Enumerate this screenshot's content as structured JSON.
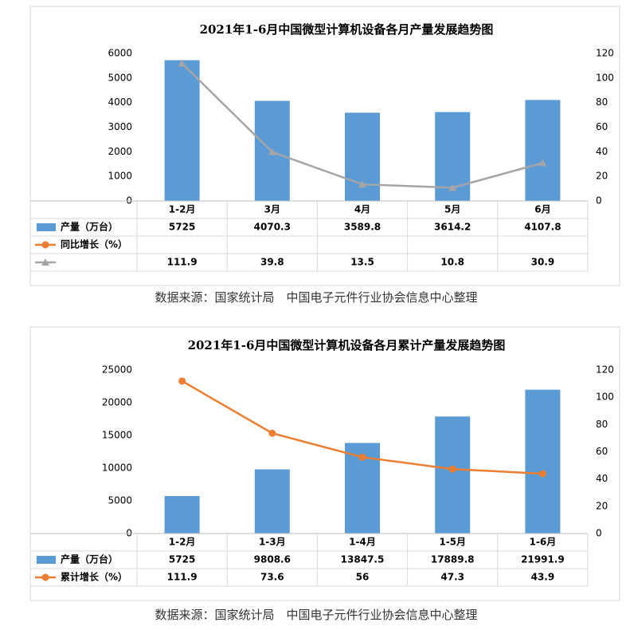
{
  "chart_data": [
    {
      "type": "bar",
      "title": "2021年1-6月中国微型计算机设备各月产量发展趋势图",
      "categories": [
        "1-2月",
        "3月",
        "4月",
        "5月",
        "6月"
      ],
      "series": [
        {
          "name": "产量（万台）",
          "color": "#5b9bd5",
          "values": [
            5725,
            4070.3,
            3589.8,
            3614.2,
            4107.8
          ]
        },
        {
          "name": "同比增长（%）",
          "color": "#ed7d31",
          "axis": "y2",
          "marker": "circle",
          "values": [
            null,
            null,
            null,
            null,
            null
          ]
        },
        {
          "name": null,
          "color": "#a5a5a5",
          "axis": "y2",
          "marker": "triangle",
          "values": [
            111.9,
            39.8,
            13.5,
            10.8,
            30.9
          ]
        }
      ],
      "ylim": [
        0,
        6000
      ],
      "yticks": [
        0,
        1000,
        2000,
        3000,
        4000,
        5000,
        6000
      ],
      "y2lim": [
        0,
        120
      ],
      "y2ticks": [
        0,
        20,
        40,
        60,
        80,
        100,
        120
      ],
      "source": "数据来源：国家统计局　中国电子元件行业协会信息中心整理"
    },
    {
      "type": "bar",
      "title": "2021年1-6月中国微型计算机设备各月累计产量发展趋势图",
      "categories": [
        "1-2月",
        "1-3月",
        "1-4月",
        "1-5月",
        "1-6月"
      ],
      "series": [
        {
          "name": "产量（万台）",
          "color": "#5b9bd5",
          "values": [
            5725,
            9808.6,
            13847.5,
            17889.8,
            21991.9
          ]
        },
        {
          "name": "累计增长（%）",
          "color": "#ed7d31",
          "axis": "y2",
          "marker": "circle",
          "values": [
            111.9,
            73.6,
            56,
            47.3,
            43.9
          ]
        }
      ],
      "ylim": [
        0,
        25000
      ],
      "yticks": [
        0,
        5000,
        10000,
        15000,
        20000,
        25000
      ],
      "y2lim": [
        0,
        120
      ],
      "y2ticks": [
        0,
        20,
        40,
        60,
        80,
        100,
        120
      ],
      "source": "数据来源：国家统计局　中国电子元件行业协会信息中心整理"
    }
  ]
}
